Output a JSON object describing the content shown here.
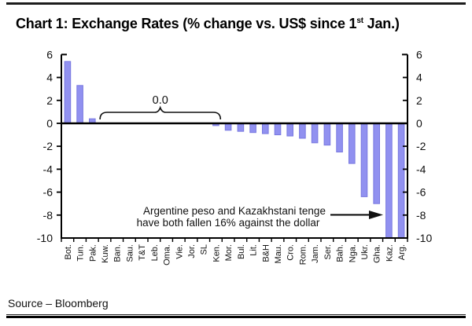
{
  "header": {
    "title_prefix": "Chart 1: Exchange Rates (% change vs. US$ since 1",
    "title_superscript": "st",
    "title_suffix": " Jan.)"
  },
  "footer": {
    "source": "Source – Bloomberg"
  },
  "colors": {
    "bar_fill": "#9191f0",
    "bar_edge": "#7878e0",
    "axis": "#000000",
    "text": "#111111"
  },
  "chart_data": {
    "type": "bar",
    "title": "Chart 1: Exchange Rates (% change vs. US$ since 1st Jan.)",
    "categories": [
      "Bot.",
      "Tun.",
      "Pak.",
      "Kuw.",
      "Ban.",
      "Sau.",
      "T&T",
      "Leb.",
      "Oma.",
      "Vie.",
      "Jor.",
      "SL",
      "Ken.",
      "Mor.",
      "Bul.",
      "Lit.",
      "B&H",
      "Mau.",
      "Cro.",
      "Rom.",
      "Jam.",
      "Ser.",
      "Bah.",
      "Nga.",
      "Ukr.",
      "Gha.",
      "Kaz.",
      "Arg."
    ],
    "values": [
      5.4,
      3.3,
      0.4,
      0,
      0,
      0,
      0,
      0,
      0,
      0,
      0,
      0,
      -0.2,
      -0.6,
      -0.7,
      -0.8,
      -0.9,
      -1.0,
      -1.1,
      -1.3,
      -1.7,
      -1.9,
      -2.5,
      -3.5,
      -6.4,
      -7.0,
      -16,
      -16
    ],
    "ylim": [
      -10,
      6
    ],
    "yticks": [
      6,
      4,
      2,
      0,
      -2,
      -4,
      -6,
      -8,
      -10
    ],
    "dual_y_axis": true,
    "grid": false,
    "bar_clip_min": -10,
    "xlabel": "",
    "ylabel": "",
    "zero_group_bracket": {
      "label": "0.0",
      "from_index": 3,
      "to_index": 12
    },
    "annotation": {
      "line1": "Argentine peso and Kazakhstani tenge",
      "line2": "have both fallen 16% against the dollar",
      "arrow_points_to": "Kaz."
    }
  }
}
